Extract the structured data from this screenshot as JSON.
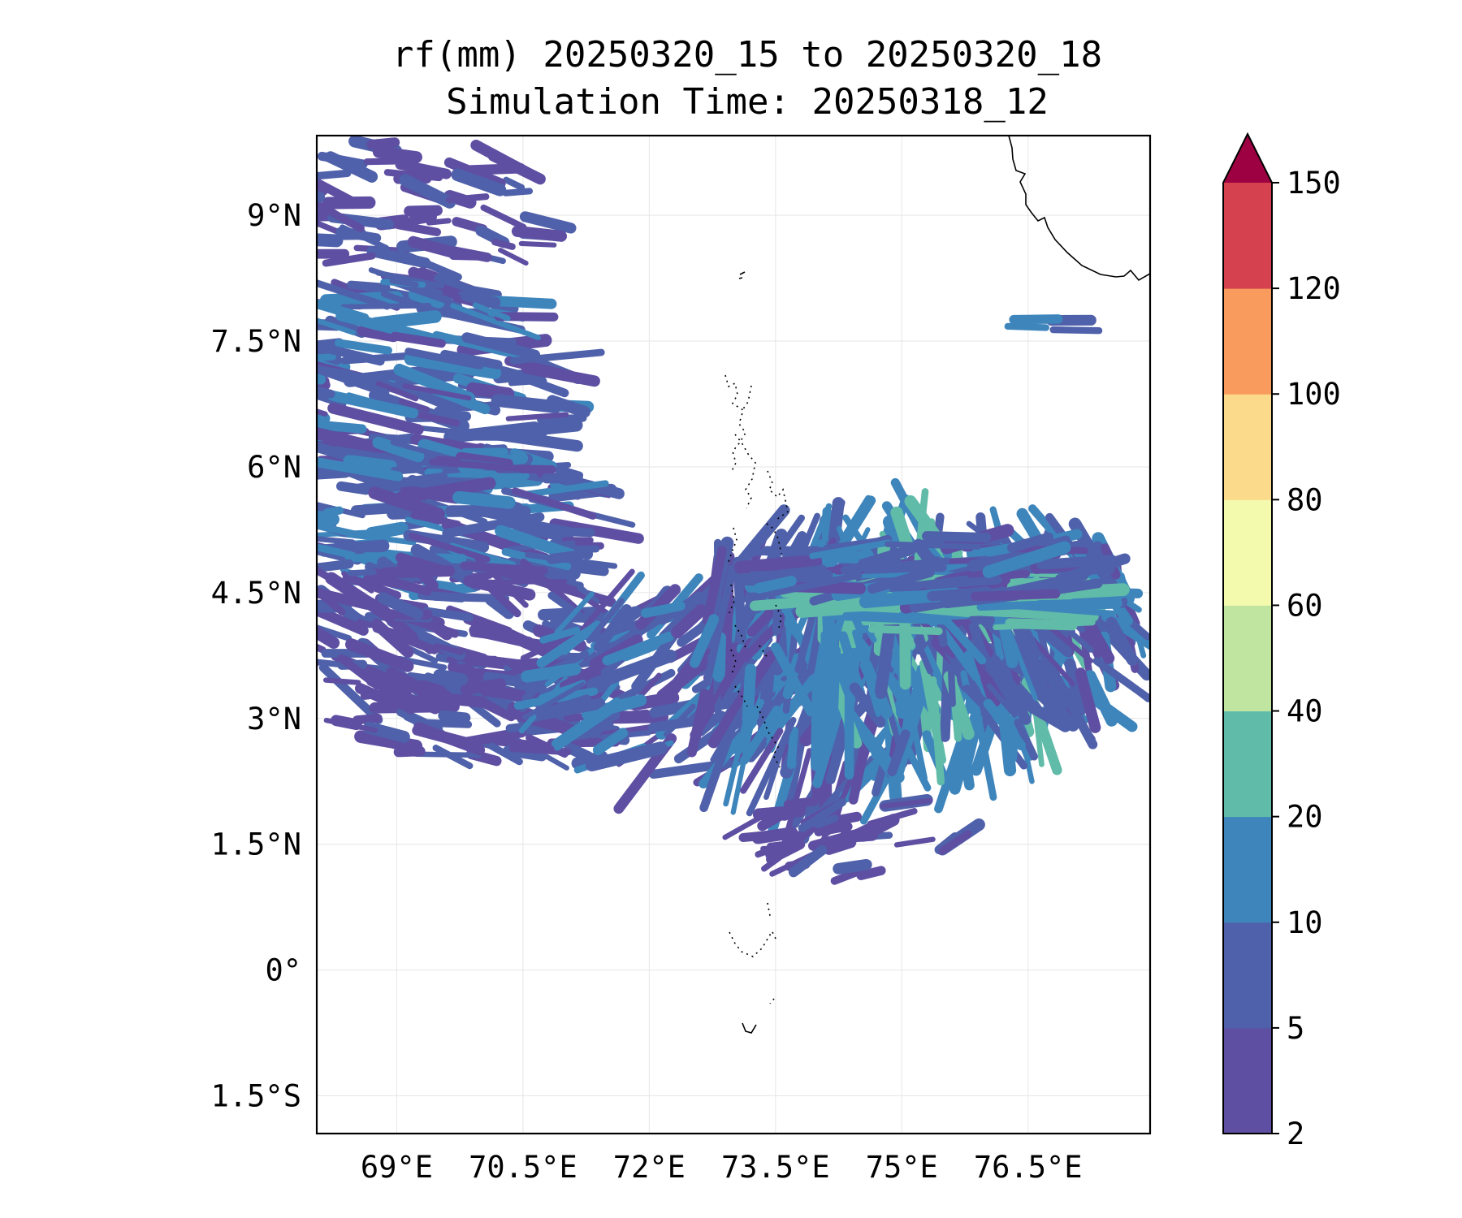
{
  "title_line1": "rf(mm) 20250320_15 to 20250320_18",
  "title_line2": "Simulation Time: 20250318_12",
  "map": {
    "lon_range": [
      68.05,
      77.95
    ],
    "lat_range": [
      -1.95,
      9.95
    ],
    "lon_ticks": [
      69,
      70.5,
      72,
      73.5,
      75,
      76.5
    ],
    "lon_tick_labels": [
      "69°E",
      "70.5°E",
      "72°E",
      "73.5°E",
      "75°E",
      "76.5°E"
    ],
    "lat_ticks": [
      9,
      7.5,
      6,
      4.5,
      3,
      1.5,
      0,
      -1.5
    ],
    "lat_tick_labels": [
      "9°N",
      "7.5°N",
      "6°N",
      "4.5°N",
      "3°N",
      "1.5°N",
      "0°",
      "1.5°S"
    ],
    "gridlines": true,
    "coastline_color": "#000000"
  },
  "colorbar": {
    "levels": [
      2,
      5,
      10,
      20,
      40,
      60,
      80,
      100,
      120,
      150
    ],
    "level_labels": [
      "2",
      "5",
      "10",
      "20",
      "40",
      "60",
      "80",
      "100",
      "120",
      "150"
    ],
    "colors": [
      "#5e4fa2",
      "#4f61aa",
      "#3e85bc",
      "#60bba8",
      "#bfe5a0",
      "#f3faad",
      "#fbdb8b",
      "#f99b5c",
      "#d6414f"
    ],
    "extend_color": "#9e0142",
    "extend": "max"
  }
}
